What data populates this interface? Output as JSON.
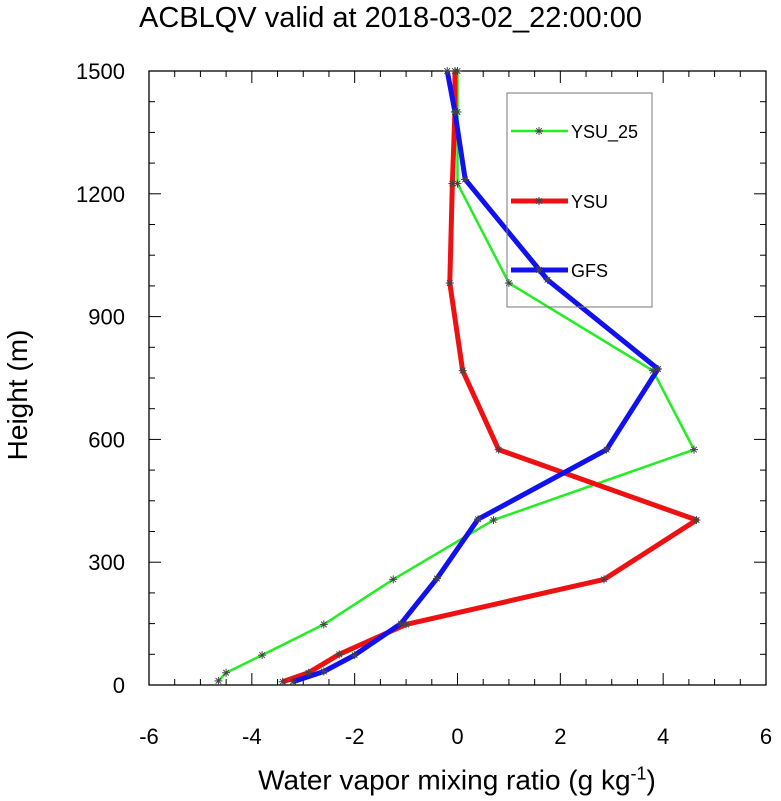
{
  "chart_data": {
    "type": "line",
    "title": "ACBLQV valid at 2018-03-02_22:00:00",
    "xlabel_base": "Water vapor mixing ratio (g kg",
    "xlabel_sup": "-1",
    "xlabel_end": ")",
    "ylabel": "Height (m)",
    "xlim": [
      -6,
      6
    ],
    "ylim": [
      0,
      1500
    ],
    "xticks": [
      -6,
      -4,
      -2,
      0,
      2,
      4,
      6
    ],
    "yticks": [
      0,
      300,
      600,
      900,
      1200,
      1500
    ],
    "xtick_labels": [
      "-6",
      "-4",
      "-2",
      "0",
      "2",
      "4",
      "6"
    ],
    "ytick_labels": [
      "0",
      "300",
      "600",
      "900",
      "1200",
      "1500"
    ],
    "grid": false,
    "legend_position": "top-right",
    "series": [
      {
        "name": "YSU_25",
        "color": "#22ee22",
        "marker": "star",
        "points": [
          [
            -4.65,
            10
          ],
          [
            -4.5,
            30
          ],
          [
            -3.8,
            73
          ],
          [
            -2.6,
            148
          ],
          [
            -1.25,
            258
          ],
          [
            0.7,
            403
          ],
          [
            4.6,
            575
          ],
          [
            3.8,
            768
          ],
          [
            1.0,
            982
          ],
          [
            0.0,
            1225
          ],
          [
            0.0,
            1400
          ],
          [
            0.0,
            1500
          ]
        ]
      },
      {
        "name": "YSU",
        "color": "#ee1111",
        "marker": "star",
        "points": [
          [
            -3.4,
            8
          ],
          [
            -2.9,
            30
          ],
          [
            -2.3,
            75
          ],
          [
            -1.0,
            148
          ],
          [
            2.85,
            258
          ],
          [
            4.65,
            403
          ],
          [
            0.8,
            575
          ],
          [
            0.1,
            768
          ],
          [
            -0.15,
            982
          ],
          [
            -0.1,
            1225
          ],
          [
            -0.05,
            1400
          ],
          [
            -0.05,
            1500
          ]
        ]
      },
      {
        "name": "GFS",
        "color": "#1111ee",
        "marker": "star",
        "points": [
          [
            -3.2,
            8
          ],
          [
            -2.6,
            33
          ],
          [
            -2.0,
            73
          ],
          [
            -1.1,
            150
          ],
          [
            -0.4,
            260
          ],
          [
            0.4,
            405
          ],
          [
            2.9,
            575
          ],
          [
            3.9,
            772
          ],
          [
            1.75,
            990
          ],
          [
            0.15,
            1235
          ],
          [
            -0.05,
            1400
          ],
          [
            -0.2,
            1500
          ]
        ]
      }
    ]
  }
}
